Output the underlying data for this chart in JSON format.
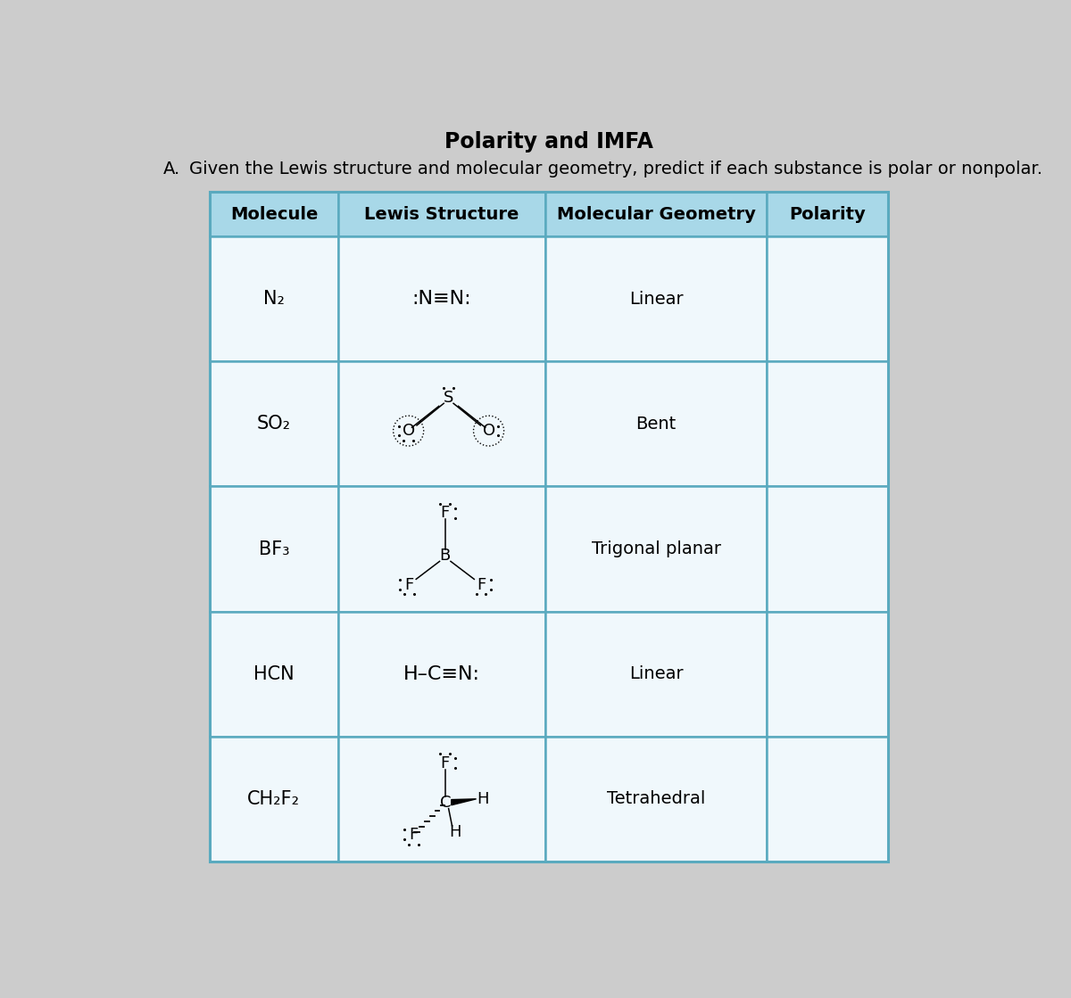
{
  "title": "Polarity and IMFA",
  "subtitle_a": "A.",
  "subtitle_text": "Given the Lewis structure and molecular geometry, predict if each substance is polar or nonpolar.",
  "header": [
    "Molecule",
    "Lewis Structure",
    "Molecular Geometry",
    "Polarity"
  ],
  "molecules": [
    "N₂",
    "SO₂",
    "BF₃",
    "HCN",
    "CH₂F₂"
  ],
  "geometries": [
    "Linear",
    "Bent",
    "Trigonal planar",
    "Linear",
    "Tetrahedral"
  ],
  "bg_color": "#d4d4d4",
  "header_bg": "#a8d8e8",
  "cell_bg": "#f0f8fc",
  "border_color": "#5aaabf",
  "title_fontsize": 17,
  "subtitle_fontsize": 14,
  "header_fontsize": 14,
  "cell_fontsize": 14,
  "lewis_fontsize": 13
}
